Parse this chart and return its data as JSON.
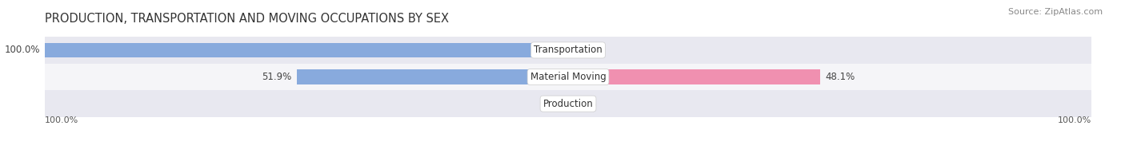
{
  "title": "PRODUCTION, TRANSPORTATION AND MOVING OCCUPATIONS BY SEX",
  "source": "Source: ZipAtlas.com",
  "categories": [
    "Transportation",
    "Material Moving",
    "Production"
  ],
  "male_values": [
    100.0,
    51.9,
    0.0
  ],
  "female_values": [
    0.0,
    48.1,
    0.0
  ],
  "male_color": "#88aadd",
  "female_color": "#f090b0",
  "male_color_dark": "#6699cc",
  "female_color_dark": "#ee77a0",
  "bg_row_color": "#f0f0f5",
  "bar_height": 0.55,
  "title_fontsize": 10.5,
  "label_fontsize": 8.5,
  "tick_fontsize": 8,
  "source_fontsize": 8,
  "legend_fontsize": 8.5,
  "xlim": 100,
  "x_axis_labels_left": "100.0%",
  "x_axis_labels_right": "100.0%"
}
